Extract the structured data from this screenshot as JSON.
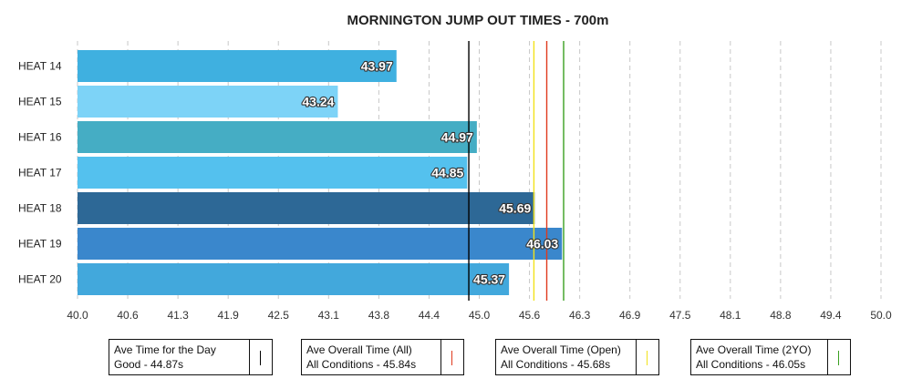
{
  "chart_data": {
    "type": "bar",
    "orientation": "horizontal",
    "title": "MORNINGTON JUMP OUT TIMES - 700m",
    "categories": [
      "HEAT 14",
      "HEAT 15",
      "HEAT 16",
      "HEAT 17",
      "HEAT 18",
      "HEAT 19",
      "HEAT 20"
    ],
    "values": [
      43.97,
      43.24,
      44.97,
      44.85,
      45.69,
      46.03,
      45.37
    ],
    "value_labels": [
      "43.97",
      "43.24",
      "44.97",
      "44.85",
      "45.69",
      "46.03",
      "45.37"
    ],
    "bar_colors": [
      "#3fb0e0",
      "#7dd3f7",
      "#45adc4",
      "#54c1ee",
      "#2d6896",
      "#3a87cc",
      "#42a8dc"
    ],
    "xlim": [
      40.0,
      50.0
    ],
    "x_ticks": [
      "40.0",
      "40.6",
      "41.3",
      "41.9",
      "42.5",
      "43.1",
      "43.8",
      "44.4",
      "45.0",
      "45.6",
      "46.3",
      "46.9",
      "47.5",
      "48.1",
      "48.8",
      "49.4",
      "50.0"
    ],
    "grid": true,
    "reference_lines": [
      {
        "value": 44.87,
        "color": "#000000"
      },
      {
        "value": 45.84,
        "color": "#e03a1e"
      },
      {
        "value": 45.68,
        "color": "#f2e21a"
      },
      {
        "value": 46.05,
        "color": "#3aa021"
      }
    ],
    "legend_position": "bottom",
    "legend": [
      {
        "line1": "Ave Time for the Day",
        "line2": "Good - 44.87s",
        "color": "#000000"
      },
      {
        "line1": "Ave Overall Time (All)",
        "line2": "All Conditions - 45.84s",
        "color": "#e03a1e"
      },
      {
        "line1": "Ave Overall Time (Open)",
        "line2": "All Conditions - 45.68s",
        "color": "#f2e21a"
      },
      {
        "line1": "Ave Overall Time (2YO)",
        "line2": "All Conditions - 46.05s",
        "color": "#3aa021"
      }
    ]
  }
}
